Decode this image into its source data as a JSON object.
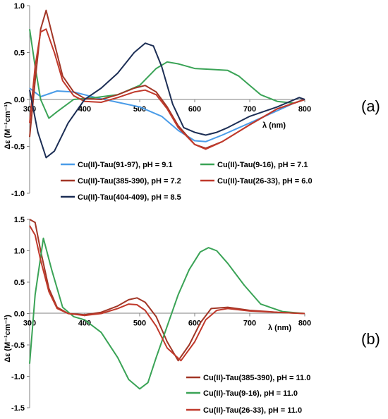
{
  "chart_data": [
    {
      "type": "line",
      "panel_label": "(a)",
      "xlabel": "λ (nm)",
      "ylabel": "Δε (M⁻¹cm⁻¹)",
      "xlim": [
        300,
        800
      ],
      "ylim": [
        -1.0,
        1.0
      ],
      "xticks": [
        "300",
        "400",
        "500",
        "600",
        "700",
        "800"
      ],
      "yticks": [
        "1.0",
        "0.5",
        "0.0",
        "-0.5",
        "-1.0"
      ],
      "grid": false,
      "legend_position": "bottom",
      "series": [
        {
          "name": "Cu(II)-Tau(91-97), pH = 9.1",
          "color": "#4a9ce8",
          "x": [
            300,
            320,
            350,
            380,
            420,
            460,
            500,
            540,
            570,
            600,
            620,
            650,
            700,
            750,
            780,
            800
          ],
          "y": [
            0.12,
            0.03,
            0.09,
            0.08,
            0.02,
            -0.03,
            -0.08,
            -0.18,
            -0.33,
            -0.44,
            -0.45,
            -0.38,
            -0.25,
            -0.12,
            -0.04,
            0.0
          ]
        },
        {
          "name": "Cu(II)-Tau(9-16), pH = 7.1",
          "color": "#3aa356",
          "x": [
            300,
            310,
            320,
            335,
            350,
            380,
            420,
            460,
            500,
            530,
            550,
            570,
            600,
            630,
            660,
            680,
            700,
            720,
            750,
            780,
            800
          ],
          "y": [
            0.75,
            0.35,
            0.0,
            -0.2,
            -0.13,
            0.0,
            0.02,
            0.05,
            0.15,
            0.33,
            0.4,
            0.38,
            0.33,
            0.32,
            0.31,
            0.25,
            0.15,
            0.05,
            -0.02,
            -0.04,
            0.0
          ]
        },
        {
          "name": "Cu(II)-Tau(385-390), pH = 7.2",
          "color": "#a23626",
          "x": [
            300,
            310,
            320,
            330,
            345,
            360,
            380,
            400,
            430,
            460,
            490,
            510,
            530,
            550,
            570,
            600,
            620,
            650,
            700,
            750,
            800
          ],
          "y": [
            -0.4,
            0.2,
            0.75,
            0.95,
            0.6,
            0.25,
            0.08,
            0.01,
            0.0,
            0.05,
            0.12,
            0.15,
            0.08,
            -0.08,
            -0.28,
            -0.48,
            -0.52,
            -0.45,
            -0.27,
            -0.1,
            0.0
          ]
        },
        {
          "name": "Cu(II)-Tau(26-33), pH = 6.0",
          "color": "#c0392b",
          "x": [
            300,
            310,
            320,
            330,
            345,
            360,
            380,
            400,
            430,
            460,
            490,
            510,
            530,
            550,
            570,
            600,
            620,
            650,
            700,
            750,
            800
          ],
          "y": [
            -0.25,
            0.35,
            0.72,
            0.75,
            0.5,
            0.2,
            0.04,
            -0.02,
            -0.03,
            0.02,
            0.08,
            0.1,
            0.05,
            -0.1,
            -0.3,
            -0.48,
            -0.53,
            -0.45,
            -0.27,
            -0.1,
            0.0
          ]
        },
        {
          "name": "Cu(II)-Tau(404-409), pH = 8.5",
          "color": "#1c2e55",
          "x": [
            300,
            315,
            330,
            345,
            370,
            400,
            430,
            460,
            490,
            510,
            525,
            540,
            560,
            580,
            600,
            620,
            640,
            660,
            700,
            750,
            790,
            800
          ],
          "y": [
            0.1,
            -0.35,
            -0.62,
            -0.55,
            -0.25,
            0.0,
            0.12,
            0.28,
            0.5,
            0.6,
            0.57,
            0.35,
            -0.05,
            -0.3,
            -0.35,
            -0.38,
            -0.35,
            -0.3,
            -0.18,
            -0.08,
            0.02,
            0.0
          ]
        }
      ]
    },
    {
      "type": "line",
      "panel_label": "(b)",
      "xlabel": "λ (nm)",
      "ylabel": "Δε (M⁻¹cm⁻¹)",
      "xlim": [
        300,
        800
      ],
      "ylim": [
        -1.5,
        1.5
      ],
      "xticks": [
        "300",
        "400",
        "500",
        "600",
        "700",
        "800"
      ],
      "yticks": [
        "1.5",
        "1.0",
        "0.5",
        "0.0",
        "-0.5",
        "-1.0",
        "-1.5"
      ],
      "grid": false,
      "legend_position": "bottom-right",
      "series": [
        {
          "name": "Cu(II)-Tau(385-390), pH = 11.0",
          "color": "#a23626",
          "x": [
            300,
            310,
            320,
            335,
            350,
            370,
            400,
            430,
            460,
            480,
            495,
            510,
            530,
            550,
            570,
            590,
            610,
            630,
            660,
            700,
            750,
            800
          ],
          "y": [
            1.5,
            1.45,
            1.0,
            0.4,
            0.1,
            0.0,
            -0.02,
            0.02,
            0.12,
            0.22,
            0.25,
            0.18,
            -0.05,
            -0.45,
            -0.75,
            -0.5,
            -0.15,
            0.08,
            0.1,
            0.05,
            0.02,
            0.0
          ]
        },
        {
          "name": "Cu(II)-Tau(9-16), pH = 11.0",
          "color": "#3aa356",
          "x": [
            300,
            310,
            325,
            340,
            360,
            380,
            400,
            430,
            460,
            480,
            500,
            515,
            530,
            550,
            570,
            590,
            610,
            625,
            640,
            660,
            690,
            720,
            760,
            800
          ],
          "y": [
            -0.8,
            0.3,
            1.2,
            0.7,
            0.1,
            -0.05,
            -0.1,
            -0.3,
            -0.7,
            -1.05,
            -1.2,
            -1.1,
            -0.7,
            -0.2,
            0.3,
            0.7,
            0.98,
            1.05,
            1.0,
            0.8,
            0.45,
            0.15,
            0.03,
            0.0
          ]
        },
        {
          "name": "Cu(II)-Tau(26-33), pH = 11.0",
          "color": "#c0392b",
          "x": [
            300,
            310,
            320,
            335,
            350,
            370,
            400,
            430,
            460,
            480,
            495,
            510,
            530,
            550,
            575,
            600,
            620,
            640,
            660,
            700,
            750,
            800
          ],
          "y": [
            1.4,
            1.25,
            0.85,
            0.35,
            0.08,
            0.0,
            -0.03,
            0.0,
            0.08,
            0.15,
            0.14,
            0.05,
            -0.2,
            -0.55,
            -0.75,
            -0.45,
            -0.1,
            0.05,
            0.08,
            0.04,
            0.02,
            0.0
          ]
        }
      ]
    }
  ]
}
